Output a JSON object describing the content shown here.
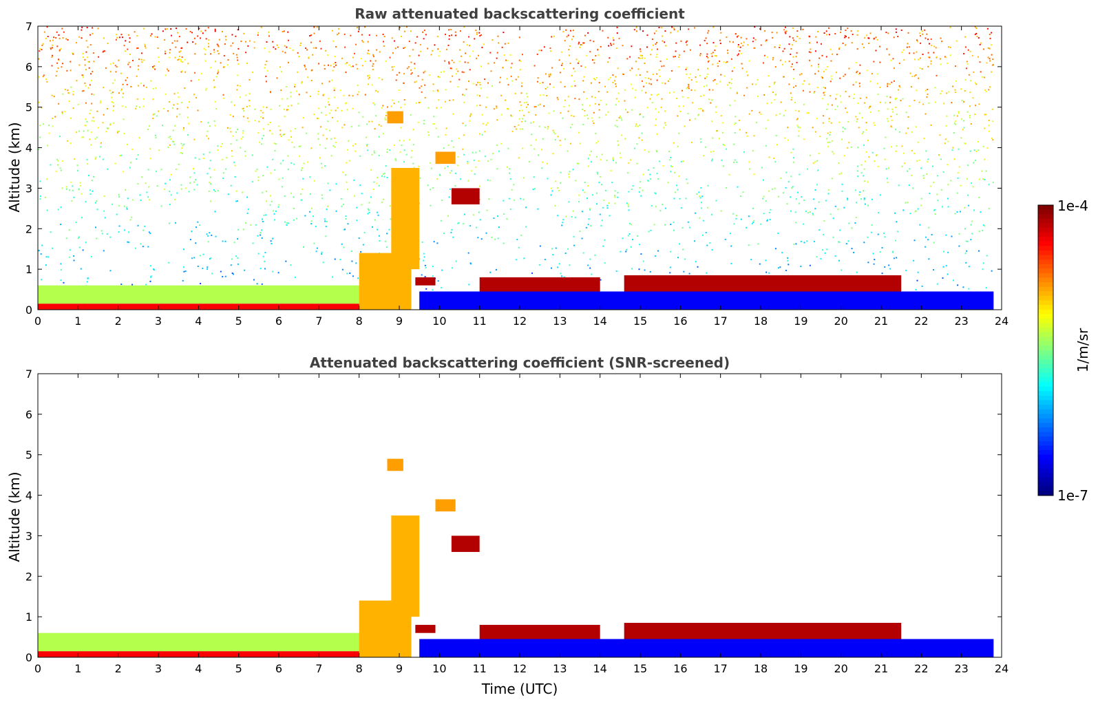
{
  "chart_data": [
    {
      "type": "heatmap",
      "title": "Raw attenuated backscattering coefficient",
      "xlabel": "",
      "ylabel": "Altitude (km)",
      "xlim": [
        0,
        24
      ],
      "ylim": [
        0,
        7
      ],
      "x_ticks": [
        "0",
        "1",
        "2",
        "3",
        "4",
        "5",
        "6",
        "7",
        "8",
        "9",
        "10",
        "11",
        "12",
        "13",
        "14",
        "15",
        "16",
        "17",
        "18",
        "19",
        "20",
        "21",
        "22",
        "23",
        "24"
      ],
      "y_ticks": [
        "0",
        "1",
        "2",
        "3",
        "4",
        "5",
        "6",
        "7"
      ],
      "noise": true,
      "features": [
        {
          "name": "surface-layer",
          "x": [
            0,
            8.1
          ],
          "y": [
            0,
            0.15
          ],
          "level": 0.88
        },
        {
          "name": "boundary-layer",
          "x": [
            0,
            8.1
          ],
          "y": [
            0.15,
            0.6
          ],
          "level": 0.55
        },
        {
          "name": "plume-8-9",
          "x": [
            8.0,
            9.3
          ],
          "y": [
            0,
            1.4
          ],
          "level": 0.7
        },
        {
          "name": "cloud-9-10",
          "x": [
            9.4,
            9.9
          ],
          "y": [
            0.6,
            0.8
          ],
          "level": 0.95
        },
        {
          "name": "virga-9",
          "x": [
            8.8,
            9.5
          ],
          "y": [
            1.0,
            3.5
          ],
          "level": 0.7
        },
        {
          "name": "cloud-10.5",
          "x": [
            10.3,
            11.0
          ],
          "y": [
            2.6,
            3.0
          ],
          "level": 0.95
        },
        {
          "name": "cloud-10",
          "x": [
            9.9,
            10.4
          ],
          "y": [
            3.6,
            3.9
          ],
          "level": 0.72
        },
        {
          "name": "cloud-9",
          "x": [
            8.7,
            9.1
          ],
          "y": [
            4.6,
            4.9
          ],
          "level": 0.72
        },
        {
          "name": "cloud-11-14",
          "x": [
            11,
            14
          ],
          "y": [
            0.45,
            0.8
          ],
          "level": 0.95
        },
        {
          "name": "cloud-14-15",
          "x": [
            13.8,
            14.6
          ],
          "y": [
            0.1,
            0.4
          ],
          "level": 0.95
        },
        {
          "name": "cloud-14.6-21.5",
          "x": [
            14.6,
            21.5
          ],
          "y": [
            0.25,
            0.85
          ],
          "level": 0.95
        },
        {
          "name": "low-level-blue",
          "x": [
            9.5,
            23.8
          ],
          "y": [
            0,
            0.45
          ],
          "level": 0.12
        }
      ]
    },
    {
      "type": "heatmap",
      "title": "Attenuated backscattering coefficient (SNR-screened)",
      "xlabel": "Time (UTC)",
      "ylabel": "Altitude (km)",
      "xlim": [
        0,
        24
      ],
      "ylim": [
        0,
        7
      ],
      "x_ticks": [
        "0",
        "1",
        "2",
        "3",
        "4",
        "5",
        "6",
        "7",
        "8",
        "9",
        "10",
        "11",
        "12",
        "13",
        "14",
        "15",
        "16",
        "17",
        "18",
        "19",
        "20",
        "21",
        "22",
        "23",
        "24"
      ],
      "y_ticks": [
        "0",
        "1",
        "2",
        "3",
        "4",
        "5",
        "6",
        "7"
      ],
      "noise": false
    }
  ],
  "colorbar": {
    "max_label": "1e-4",
    "min_label": "1e-7",
    "unit_label": "1/m/sr",
    "colormap": "jet",
    "min_value": 1e-07,
    "max_value": 0.0001
  }
}
